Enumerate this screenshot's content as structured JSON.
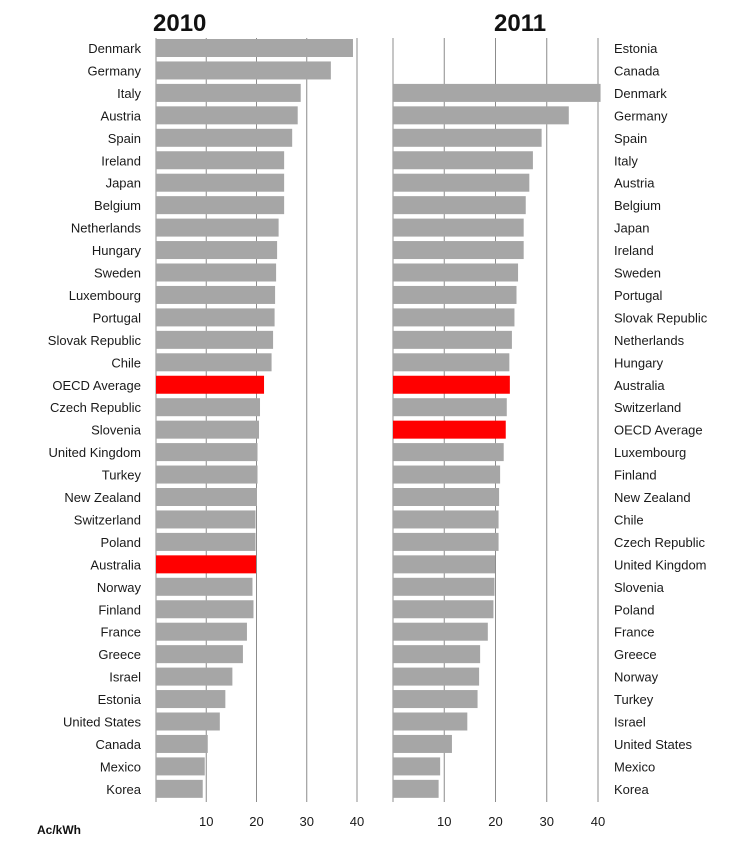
{
  "figure": {
    "unit": "Ac/kWh",
    "colors": {
      "bar": "#a6a6a6",
      "highlight": "#ff0000",
      "gridline": "#8c8c8c",
      "text": "#1a1a1a"
    }
  },
  "chart_data": [
    {
      "type": "bar",
      "orientation": "horizontal",
      "title": "2010",
      "xlabel": "Ac/kWh",
      "xlim": [
        0,
        40
      ],
      "xticks": [
        10,
        20,
        30,
        40
      ],
      "grid": true,
      "category_labels_side": "left",
      "highlighted": [
        "OECD Average",
        "Australia"
      ],
      "categories": [
        "Denmark",
        "Germany",
        "Italy",
        "Austria",
        "Spain",
        "Ireland",
        "Japan",
        "Belgium",
        "Netherlands",
        "Hungary",
        "Sweden",
        "Luxembourg",
        "Portugal",
        "Slovak Republic",
        "Chile",
        "OECD Average",
        "Czech Republic",
        "Slovenia",
        "United Kingdom",
        "Turkey",
        "New Zealand",
        "Switzerland",
        "Poland",
        "Australia",
        "Norway",
        "Finland",
        "France",
        "Greece",
        "Israel",
        "Estonia",
        "United States",
        "Canada",
        "Mexico",
        "Korea"
      ],
      "values": [
        39.2,
        34.8,
        28.8,
        28.2,
        27.1,
        25.5,
        25.5,
        25.5,
        24.4,
        24.1,
        23.9,
        23.7,
        23.6,
        23.3,
        23.0,
        21.5,
        20.7,
        20.5,
        20.2,
        20.2,
        20.1,
        19.8,
        19.8,
        19.9,
        19.2,
        19.4,
        18.1,
        17.3,
        15.2,
        13.8,
        12.7,
        10.3,
        9.7,
        9.3
      ]
    },
    {
      "type": "bar",
      "orientation": "horizontal",
      "title": "2011",
      "xlabel": "Ac/kWh",
      "xlim": [
        0,
        40
      ],
      "xticks": [
        10,
        20,
        30,
        40
      ],
      "grid": true,
      "category_labels_side": "right",
      "highlighted": [
        "Australia",
        "OECD Average"
      ],
      "categories": [
        "Estonia",
        "Canada",
        "Denmark",
        "Germany",
        "Spain",
        "Italy",
        "Austria",
        "Belgium",
        "Japan",
        "Ireland",
        "Sweden",
        "Portugal",
        "Slovak Republic",
        "Netherlands",
        "Hungary",
        "Australia",
        "Switzerland",
        "OECD Average",
        "Luxembourg",
        "Finland",
        "New Zealand",
        "Chile",
        "Czech Republic",
        "United Kingdom",
        "Slovenia",
        "Poland",
        "France",
        "Greece",
        "Norway",
        "Turkey",
        "Israel",
        "United States",
        "Mexico",
        "Korea"
      ],
      "values": [
        null,
        null,
        40.5,
        34.3,
        29.0,
        27.3,
        26.6,
        25.9,
        25.5,
        25.5,
        24.4,
        24.1,
        23.7,
        23.2,
        22.7,
        22.8,
        22.2,
        22.0,
        21.6,
        20.9,
        20.7,
        20.6,
        20.6,
        19.9,
        19.8,
        19.6,
        18.5,
        17.0,
        16.8,
        16.5,
        14.5,
        11.5,
        9.2,
        8.9
      ]
    }
  ]
}
